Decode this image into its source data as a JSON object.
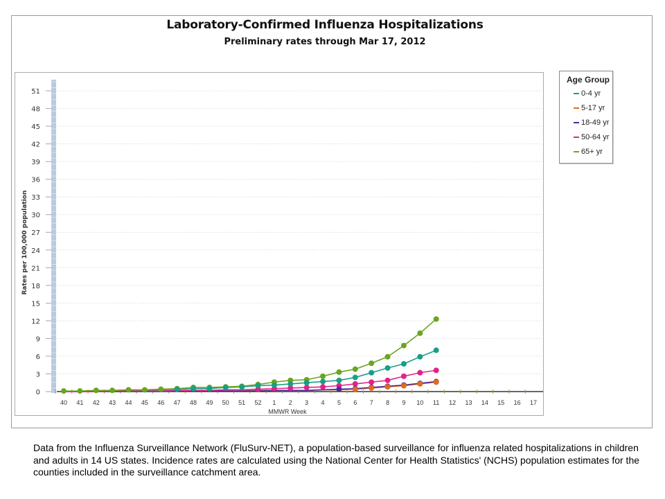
{
  "chart_data": {
    "type": "line",
    "title": "Laboratory-Confirmed Influenza Hospitalizations",
    "subtitle": "Preliminary rates through Mar 17, 2012",
    "xlabel": "MMWR Week",
    "ylabel": "Rates per 100,000 population",
    "ylim": [
      0,
      53
    ],
    "yticks": [
      0,
      3,
      6,
      9,
      12,
      15,
      18,
      21,
      24,
      27,
      30,
      33,
      36,
      39,
      42,
      45,
      48,
      51
    ],
    "categories": [
      "40",
      "41",
      "42",
      "43",
      "44",
      "45",
      "46",
      "47",
      "48",
      "49",
      "50",
      "51",
      "52",
      "1",
      "2",
      "3",
      "4",
      "5",
      "6",
      "7",
      "8",
      "9",
      "10",
      "11",
      "12",
      "13",
      "14",
      "15",
      "16",
      "17"
    ],
    "grid": true,
    "legend_position": "right",
    "legend_title": "Age Group",
    "series": [
      {
        "name": "0-4 yr",
        "color": "#1a9e86",
        "values": [
          0.0,
          0.0,
          0.1,
          0.1,
          0.2,
          0.2,
          0.3,
          0.4,
          0.5,
          0.5,
          0.7,
          0.8,
          1.0,
          1.1,
          1.3,
          1.5,
          1.7,
          1.9,
          2.4,
          3.2,
          4.0,
          4.7,
          5.9,
          7.0,
          null,
          null,
          null,
          null,
          null,
          null
        ]
      },
      {
        "name": "5-17 yr",
        "color": "#e06c1a",
        "values": [
          0.0,
          0.0,
          0.0,
          0.0,
          0.0,
          0.0,
          0.1,
          0.1,
          0.1,
          0.1,
          0.1,
          0.1,
          0.2,
          0.2,
          0.2,
          0.2,
          0.3,
          0.3,
          0.4,
          0.6,
          0.8,
          1.0,
          1.3,
          1.6,
          null,
          null,
          null,
          null,
          null,
          null
        ]
      },
      {
        "name": "18-49 yr",
        "color": "#4b2a9a",
        "values": [
          0.0,
          0.0,
          0.0,
          0.0,
          0.0,
          0.0,
          0.0,
          0.1,
          0.1,
          0.1,
          0.1,
          0.1,
          0.1,
          0.2,
          0.2,
          0.2,
          0.3,
          0.4,
          0.5,
          0.7,
          0.9,
          1.1,
          1.4,
          1.7,
          null,
          null,
          null,
          null,
          null,
          null
        ]
      },
      {
        "name": "50-64 yr",
        "color": "#e0238a",
        "values": [
          0.0,
          0.0,
          0.0,
          0.1,
          0.1,
          0.1,
          0.1,
          0.2,
          0.2,
          0.2,
          0.3,
          0.3,
          0.4,
          0.5,
          0.6,
          0.7,
          0.8,
          1.0,
          1.3,
          1.6,
          1.9,
          2.6,
          3.2,
          3.6,
          null,
          null,
          null,
          null,
          null,
          null
        ]
      },
      {
        "name": "65+ yr",
        "color": "#6aa51e",
        "values": [
          0.1,
          0.1,
          0.2,
          0.2,
          0.3,
          0.3,
          0.4,
          0.5,
          0.7,
          0.7,
          0.8,
          0.9,
          1.2,
          1.6,
          1.9,
          2.0,
          2.6,
          3.3,
          3.8,
          4.8,
          5.9,
          7.8,
          9.9,
          12.3,
          null,
          null,
          null,
          null,
          null,
          null
        ]
      }
    ]
  },
  "header": {
    "title": "Laboratory-Confirmed Influenza Hospitalizations",
    "subtitle": "Preliminary rates through Mar 17, 2012"
  },
  "legend": {
    "title": "Age Group",
    "items": [
      {
        "label": "0-4 yr",
        "color": "#1a9e86"
      },
      {
        "label": "5-17 yr",
        "color": "#e06c1a"
      },
      {
        "label": "18-49 yr",
        "color": "#4b2a9a"
      },
      {
        "label": "50-64 yr",
        "color": "#e0238a"
      },
      {
        "label": "65+ yr",
        "color": "#6aa51e"
      }
    ]
  },
  "caption": "Data from the Influenza Surveillance Network (FluSurv-NET),  a population-based surveillance for influenza related hospitalizations in children and adults in 14 US states.  Incidence rates are calculated using the National Center for Health Statistics' (NCHS) population estimates for the counties included in the surveillance catchment area."
}
